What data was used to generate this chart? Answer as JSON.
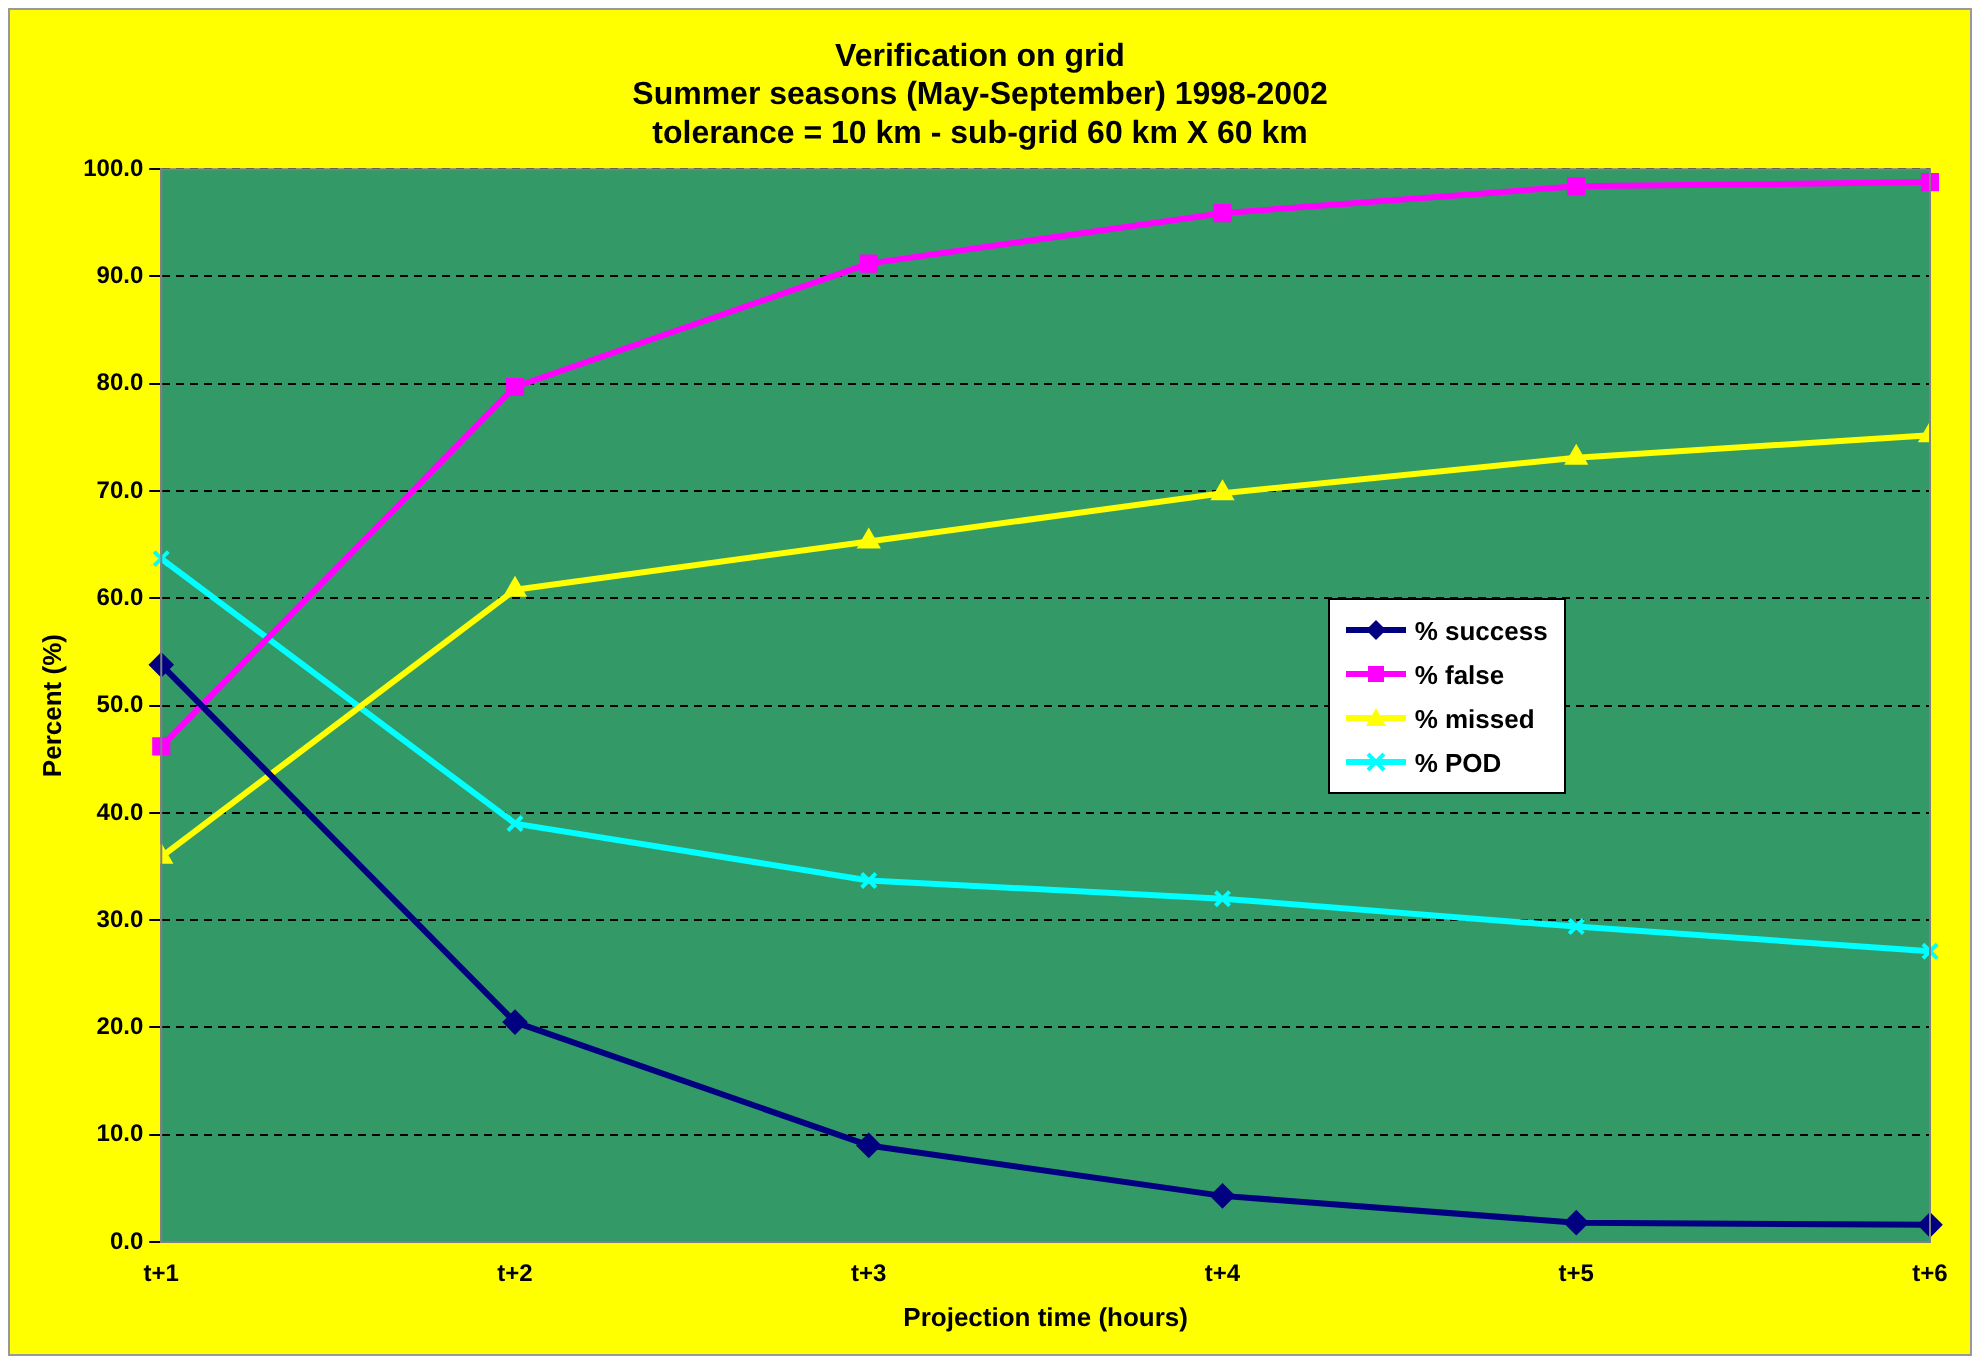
{
  "chart_data": {
    "type": "line",
    "title": [
      "Verification on grid",
      "Summer seasons (May-September) 1998-2002",
      "tolerance = 10 km - sub-grid 60 km X 60 km"
    ],
    "xlabel": "Projection time (hours)",
    "ylabel": "Percent (%)",
    "categories": [
      "t+1",
      "t+2",
      "t+3",
      "t+4",
      "t+5",
      "t+6"
    ],
    "series": [
      {
        "name": "% success",
        "color": "#000080",
        "marker": "diamond",
        "values": [
          53.8,
          20.5,
          9.0,
          4.3,
          1.8,
          1.6
        ]
      },
      {
        "name": "% false",
        "color": "#ff00ff",
        "marker": "square",
        "values": [
          46.2,
          79.7,
          91.2,
          95.9,
          98.4,
          98.8
        ]
      },
      {
        "name": "% missed",
        "color": "#ffff00",
        "marker": "triangle",
        "values": [
          35.9,
          60.8,
          65.3,
          69.8,
          73.1,
          75.2
        ]
      },
      {
        "name": "% POD",
        "color": "#00ffff",
        "marker": "cross",
        "values": [
          63.7,
          39.0,
          33.7,
          32.0,
          29.4,
          27.1
        ]
      }
    ],
    "ylim": [
      0,
      100
    ],
    "yticks": [
      {
        "value": 0,
        "label": "0.0"
      },
      {
        "value": 10,
        "label": "10.0"
      },
      {
        "value": 20,
        "label": "20.0"
      },
      {
        "value": 30,
        "label": "30.0"
      },
      {
        "value": 40,
        "label": "40.0"
      },
      {
        "value": 50,
        "label": "50.0"
      },
      {
        "value": 60,
        "label": "60.0"
      },
      {
        "value": 70,
        "label": "70.0"
      },
      {
        "value": 80,
        "label": "80.0"
      },
      {
        "value": 90,
        "label": "90.0"
      },
      {
        "value": 100,
        "label": "100.0"
      }
    ],
    "grid": "y",
    "legend": "right",
    "line_style": "solid"
  }
}
